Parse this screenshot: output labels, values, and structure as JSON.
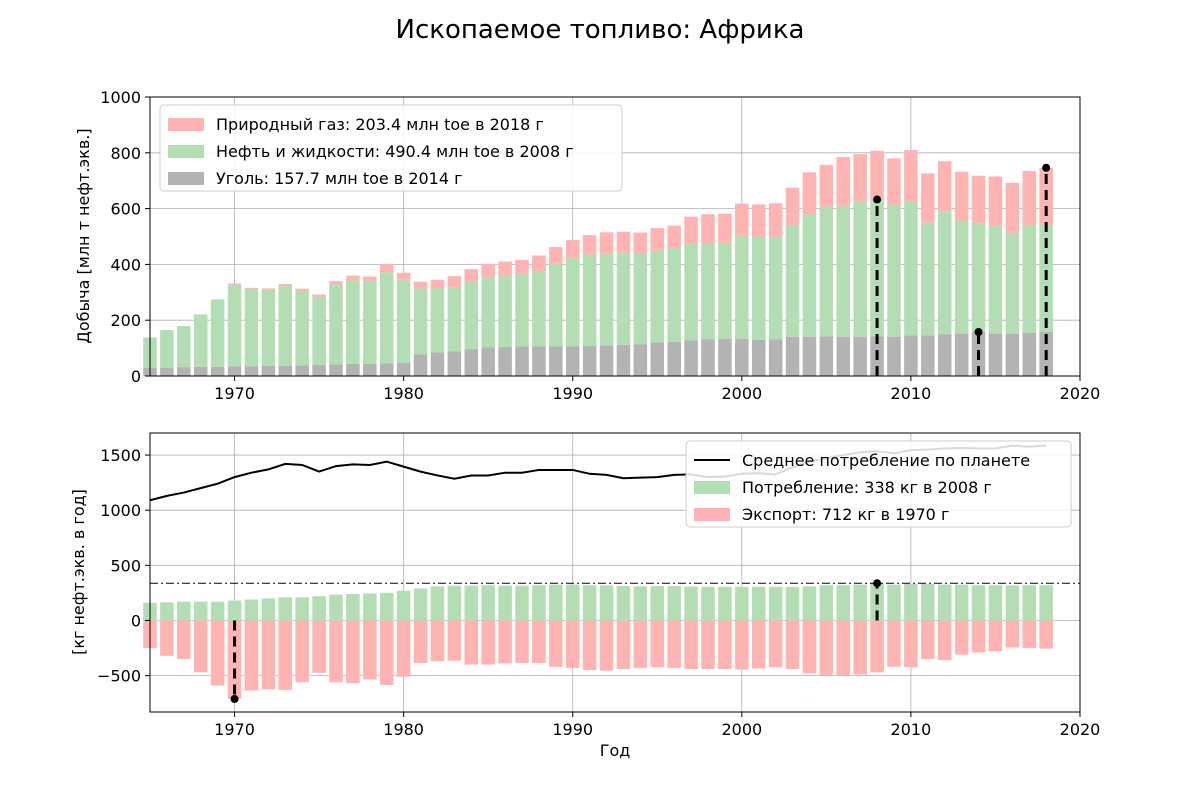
{
  "title": "Ископаемое топливо: Африка",
  "chart_data": [
    {
      "type": "bar",
      "stacked": true,
      "ylabel": "Добыча [млн т нефт.экв.]",
      "xlabel": "",
      "xlim": [
        1965,
        2020
      ],
      "ylim": [
        0,
        1000
      ],
      "xticks": [
        1970,
        1980,
        1990,
        2000,
        2010,
        2020
      ],
      "yticks": [
        0,
        200,
        400,
        600,
        800,
        1000
      ],
      "grid": true,
      "legend_position": "top-left",
      "x": [
        1965,
        1966,
        1967,
        1968,
        1969,
        1970,
        1971,
        1972,
        1973,
        1974,
        1975,
        1976,
        1977,
        1978,
        1979,
        1980,
        1981,
        1982,
        1983,
        1984,
        1985,
        1986,
        1987,
        1988,
        1989,
        1990,
        1991,
        1992,
        1993,
        1994,
        1995,
        1996,
        1997,
        1998,
        1999,
        2000,
        2001,
        2002,
        2003,
        2004,
        2005,
        2006,
        2007,
        2008,
        2009,
        2010,
        2011,
        2012,
        2013,
        2014,
        2015,
        2016,
        2017,
        2018
      ],
      "series": [
        {
          "name": "Уголь: 157.7 млн toe в 2014 г",
          "color": "#b3b3b3",
          "values": [
            30,
            30,
            32,
            33,
            33,
            34,
            35,
            36,
            37,
            38,
            40,
            42,
            43,
            44,
            45,
            47,
            78,
            85,
            88,
            95,
            102,
            105,
            106,
            107,
            107,
            107,
            108,
            110,
            112,
            114,
            120,
            122,
            128,
            132,
            134,
            133,
            130,
            131,
            140,
            140,
            142,
            140,
            140,
            142,
            140,
            145,
            146,
            150,
            152,
            157.7,
            152,
            152,
            155,
            158
          ]
        },
        {
          "name": "Нефть и жидкости: 490.4 млн toe в 2008 г",
          "color": "#b3ddb3",
          "values": [
            108,
            135,
            147,
            188,
            242,
            293,
            276,
            273,
            285,
            267,
            244,
            286,
            300,
            297,
            327,
            298,
            235,
            230,
            230,
            243,
            252,
            255,
            260,
            270,
            295,
            315,
            327,
            330,
            330,
            325,
            330,
            337,
            345,
            343,
            343,
            370,
            370,
            368,
            400,
            440,
            465,
            470,
            485,
            490.4,
            475,
            480,
            405,
            440,
            405,
            390,
            385,
            360,
            385,
            385
          ]
        },
        {
          "name": "Природный газ: 203.4 млн toe в 2018 г",
          "color": "#ffb3b3",
          "values": [
            0,
            0,
            0,
            0,
            0,
            5,
            5,
            5,
            8,
            8,
            8,
            12,
            17,
            15,
            30,
            25,
            25,
            30,
            40,
            45,
            48,
            50,
            50,
            55,
            60,
            65,
            70,
            75,
            75,
            75,
            80,
            80,
            98,
            105,
            105,
            115,
            115,
            120,
            135,
            150,
            150,
            175,
            170,
            175,
            165,
            185,
            175,
            180,
            175,
            170,
            178,
            180,
            195,
            203.4
          ]
        }
      ],
      "markers": [
        {
          "x": 2008,
          "y": 632.4
        },
        {
          "x": 2014,
          "y": 157.7
        },
        {
          "x": 2018,
          "y": 746.4
        }
      ]
    },
    {
      "type": "bar",
      "ylabel": "[кг нефт.экв. в год]",
      "xlabel": "Год",
      "xlim": [
        1965,
        2020
      ],
      "ylim": [
        -830,
        1700
      ],
      "xticks": [
        1970,
        1980,
        1990,
        2000,
        2010,
        2020
      ],
      "yticks": [
        -500,
        0,
        500,
        1000,
        1500
      ],
      "grid": true,
      "legend_position": "top-right",
      "x": [
        1965,
        1966,
        1967,
        1968,
        1969,
        1970,
        1971,
        1972,
        1973,
        1974,
        1975,
        1976,
        1977,
        1978,
        1979,
        1980,
        1981,
        1982,
        1983,
        1984,
        1985,
        1986,
        1987,
        1988,
        1989,
        1990,
        1991,
        1992,
        1993,
        1994,
        1995,
        1996,
        1997,
        1998,
        1999,
        2000,
        2001,
        2002,
        2003,
        2004,
        2005,
        2006,
        2007,
        2008,
        2009,
        2010,
        2011,
        2012,
        2013,
        2014,
        2015,
        2016,
        2017,
        2018
      ],
      "series": [
        {
          "name": "Среднее потребление по планете",
          "kind": "line",
          "color": "#000000",
          "values": [
            1090,
            1130,
            1160,
            1200,
            1240,
            1300,
            1340,
            1370,
            1420,
            1410,
            1350,
            1400,
            1415,
            1410,
            1440,
            1395,
            1350,
            1315,
            1285,
            1315,
            1315,
            1340,
            1340,
            1365,
            1365,
            1365,
            1330,
            1320,
            1290,
            1295,
            1300,
            1320,
            1325,
            1300,
            1305,
            1330,
            1335,
            1325,
            1390,
            1440,
            1470,
            1500,
            1525,
            1535,
            1515,
            1545,
            1550,
            1560,
            1565,
            1560,
            1560,
            1585,
            1575,
            1585
          ]
        },
        {
          "name": "Потребление: 338 кг в 2008 г",
          "kind": "bar",
          "color": "#b3ddb3",
          "values": [
            160,
            165,
            170,
            170,
            170,
            180,
            190,
            200,
            210,
            210,
            220,
            235,
            240,
            245,
            250,
            270,
            290,
            310,
            315,
            315,
            320,
            315,
            315,
            320,
            325,
            325,
            320,
            318,
            312,
            310,
            312,
            312,
            308,
            305,
            305,
            305,
            305,
            305,
            305,
            310,
            320,
            320,
            325,
            338,
            325,
            330,
            330,
            325,
            325,
            320,
            320,
            318,
            320,
            320
          ]
        },
        {
          "name": "Экспорт: 712 кг в 1970 г",
          "kind": "bar",
          "color": "#ffb3b3",
          "values": [
            -250,
            -320,
            -350,
            -470,
            -590,
            -712,
            -635,
            -625,
            -630,
            -560,
            -475,
            -560,
            -570,
            -535,
            -585,
            -510,
            -385,
            -370,
            -365,
            -400,
            -400,
            -390,
            -385,
            -385,
            -420,
            -430,
            -450,
            -455,
            -440,
            -430,
            -425,
            -430,
            -440,
            -440,
            -440,
            -445,
            -435,
            -425,
            -440,
            -480,
            -495,
            -495,
            -490,
            -470,
            -420,
            -425,
            -350,
            -360,
            -310,
            -290,
            -280,
            -245,
            -250,
            -255
          ]
        }
      ],
      "reference_line": 338,
      "markers": [
        {
          "x": 1970,
          "y": -712
        },
        {
          "x": 2008,
          "y": 338
        }
      ]
    }
  ]
}
